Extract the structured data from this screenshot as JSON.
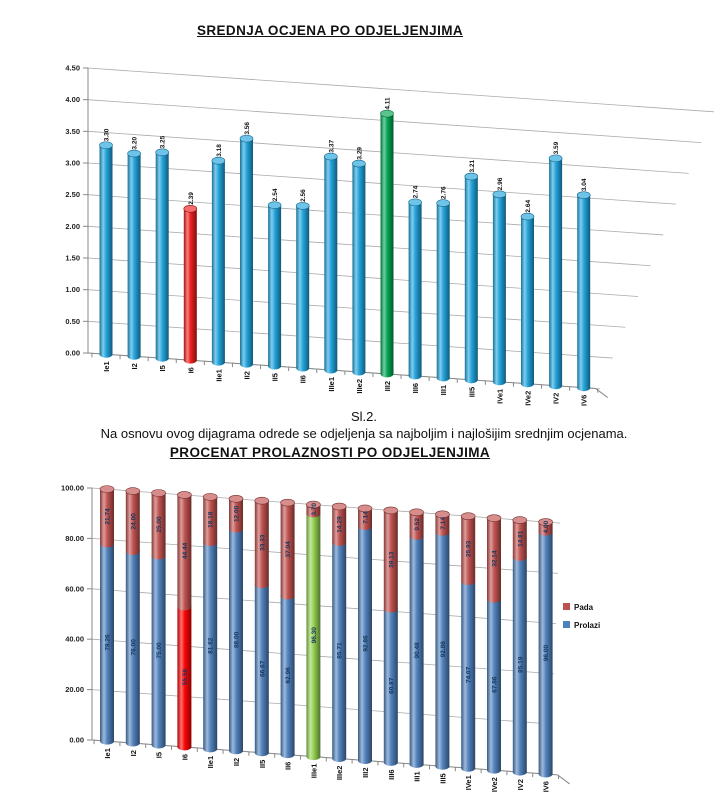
{
  "figure": {
    "caption": "Sl.2.",
    "note": "Na osnovu ovog dijagrama odrede se odjeljenja sa najboljim i najlošijim srednjim ocjenama."
  },
  "chart_data": [
    {
      "type": "bar",
      "variant": "3d-cylinder",
      "title": "SREDNJA OCJENA PO ODJELJENJIMA",
      "categories": [
        "Ie1",
        "I2",
        "I5",
        "I6",
        "IIe1",
        "II2",
        "II5",
        "II6",
        "IIIe1",
        "IIIe2",
        "III2",
        "III6",
        "III1",
        "III5",
        "IVe1",
        "IVe2",
        "IV2",
        "IV6"
      ],
      "values": [
        3.3,
        3.2,
        3.25,
        2.39,
        3.18,
        3.56,
        2.54,
        2.56,
        3.37,
        3.29,
        4.11,
        2.74,
        2.76,
        3.21,
        2.96,
        2.64,
        3.59,
        3.04
      ],
      "bar_color_default": "#1fa3dc",
      "bar_color_overrides": {
        "3": "#ee1c1c",
        "10": "#00a551"
      },
      "ylim": [
        0,
        4.5
      ],
      "yticks": [
        "0.00",
        "0.50",
        "1.00",
        "1.50",
        "2.00",
        "2.50",
        "3.00",
        "3.50",
        "4.00",
        "4.50"
      ],
      "grid": true,
      "legend": null
    },
    {
      "type": "bar",
      "variant": "3d-cylinder-stacked",
      "title": "PROCENAT PROLAZNOSTI PO ODJELJENJIMA",
      "categories": [
        "Ie1",
        "I2",
        "I5",
        "I6",
        "IIe1",
        "II2",
        "II5",
        "II6",
        "IIIe1",
        "IIIe2",
        "III2",
        "III6",
        "III1",
        "III5",
        "IVe1",
        "IVe2",
        "IV2",
        "IV6"
      ],
      "series": [
        {
          "name": "Prolazi",
          "color": "#4f81bd",
          "color_overrides": {
            "3": "#fe0000",
            "8": "#92d050"
          },
          "values": [
            78.26,
            76.0,
            75.0,
            55.56,
            81.82,
            88.0,
            66.67,
            62.96,
            96.3,
            85.71,
            92.86,
            60.87,
            90.48,
            92.86,
            74.07,
            67.86,
            85.19,
            96.0
          ]
        },
        {
          "name": "Pada",
          "color": "#c0504d",
          "color_overrides": {},
          "values": [
            21.74,
            24.0,
            25.0,
            44.44,
            18.18,
            12.0,
            33.33,
            37.04,
            3.7,
            14.29,
            7.14,
            39.13,
            9.52,
            7.14,
            25.93,
            32.14,
            14.81,
            4.0
          ]
        }
      ],
      "ylim": [
        0,
        100
      ],
      "yticks": [
        "0.00",
        "20.00",
        "40.00",
        "60.00",
        "80.00",
        "100.00"
      ],
      "grid": true,
      "legend": {
        "position": "right",
        "entries": [
          "Pada",
          "Prolazi"
        ]
      }
    }
  ]
}
